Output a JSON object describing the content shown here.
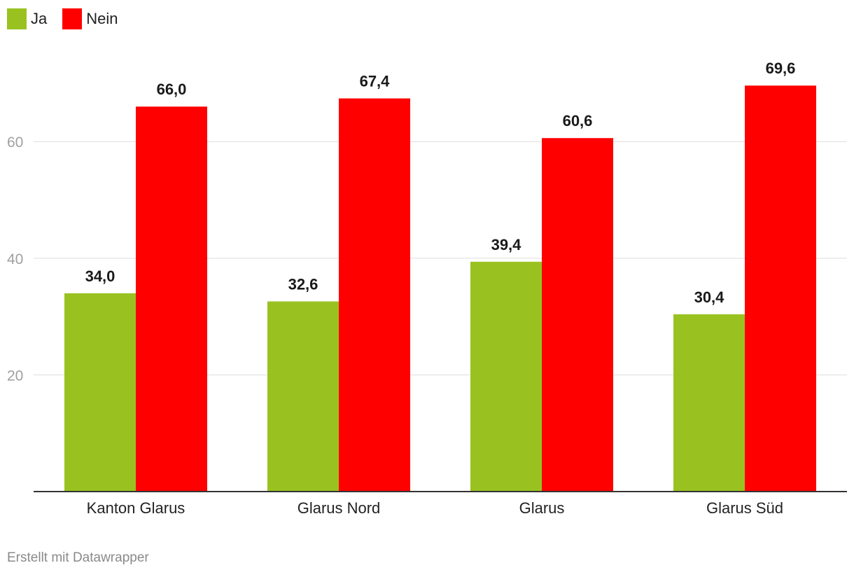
{
  "chart_data": {
    "type": "bar",
    "categories": [
      "Kanton Glarus",
      "Glarus Nord",
      "Glarus",
      "Glarus Süd"
    ],
    "series": [
      {
        "name": "Ja",
        "color": "#99c221",
        "values": [
          34.0,
          32.6,
          39.4,
          30.4
        ],
        "labels": [
          "34,0",
          "32,6",
          "39,4",
          "30,4"
        ]
      },
      {
        "name": "Nein",
        "color": "#fe0000",
        "values": [
          66.0,
          67.4,
          60.6,
          69.6
        ],
        "labels": [
          "66,0",
          "67,4",
          "60,6",
          "69,6"
        ]
      }
    ],
    "y_ticks": [
      20,
      40,
      60
    ],
    "ylim": [
      0,
      72
    ],
    "grid": true,
    "legend": "top-left"
  },
  "footer": {
    "credit": "Erstellt mit Datawrapper"
  }
}
